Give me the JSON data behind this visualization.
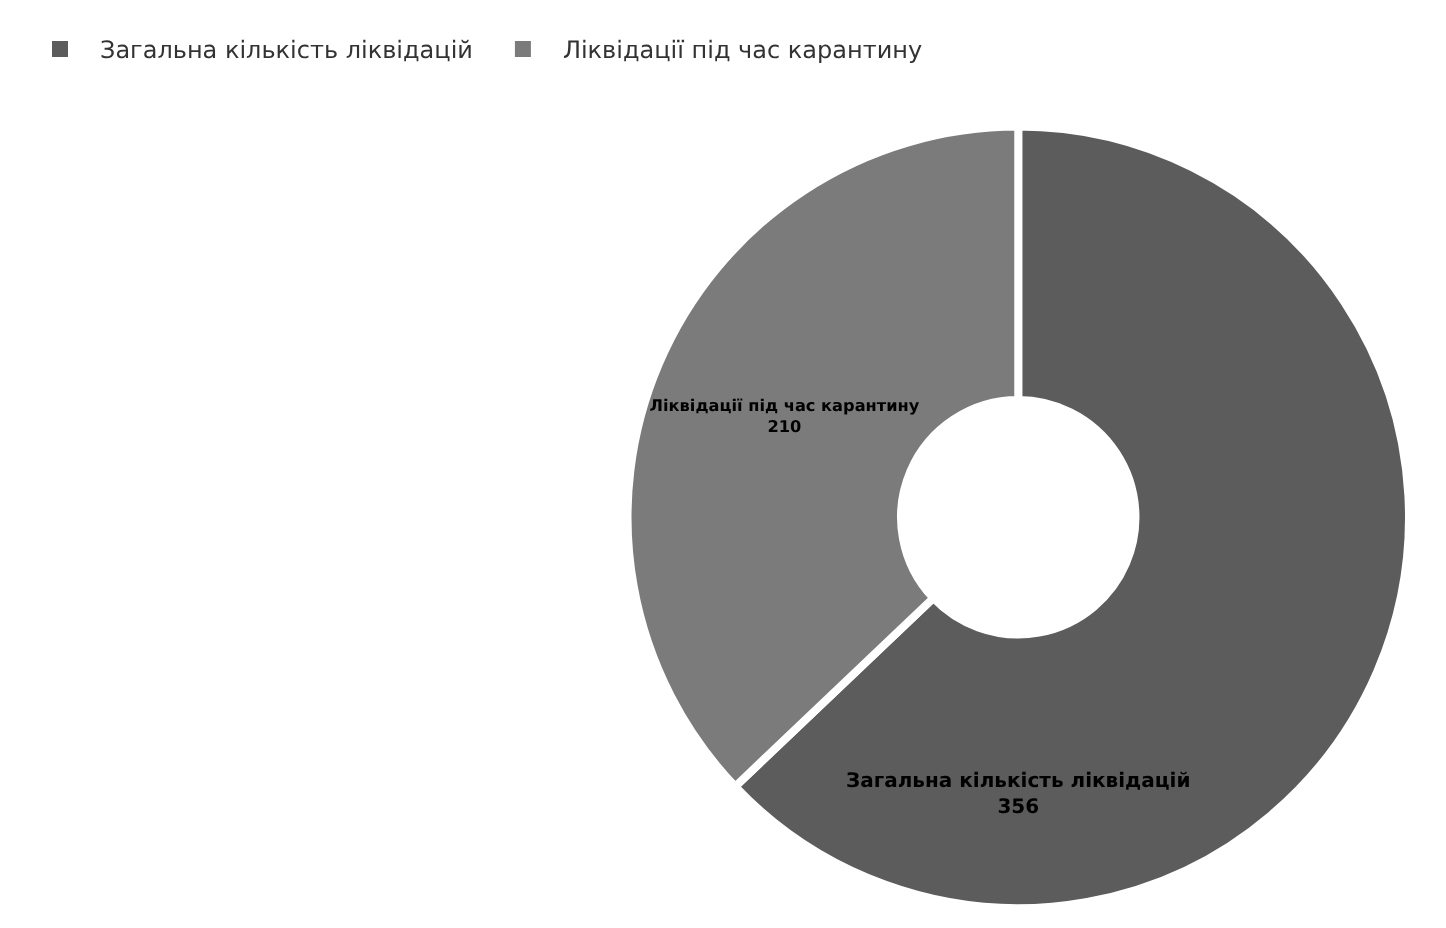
{
  "chart_data": {
    "type": "donut",
    "categories": [
      "Загальна кількість ліквідацій",
      "Ліквідації під час карантину"
    ],
    "values": [
      356,
      210
    ],
    "colors": [
      "#5c5c5c",
      "#7b7b7b"
    ],
    "data_labels": true,
    "legend": "top left"
  }
}
